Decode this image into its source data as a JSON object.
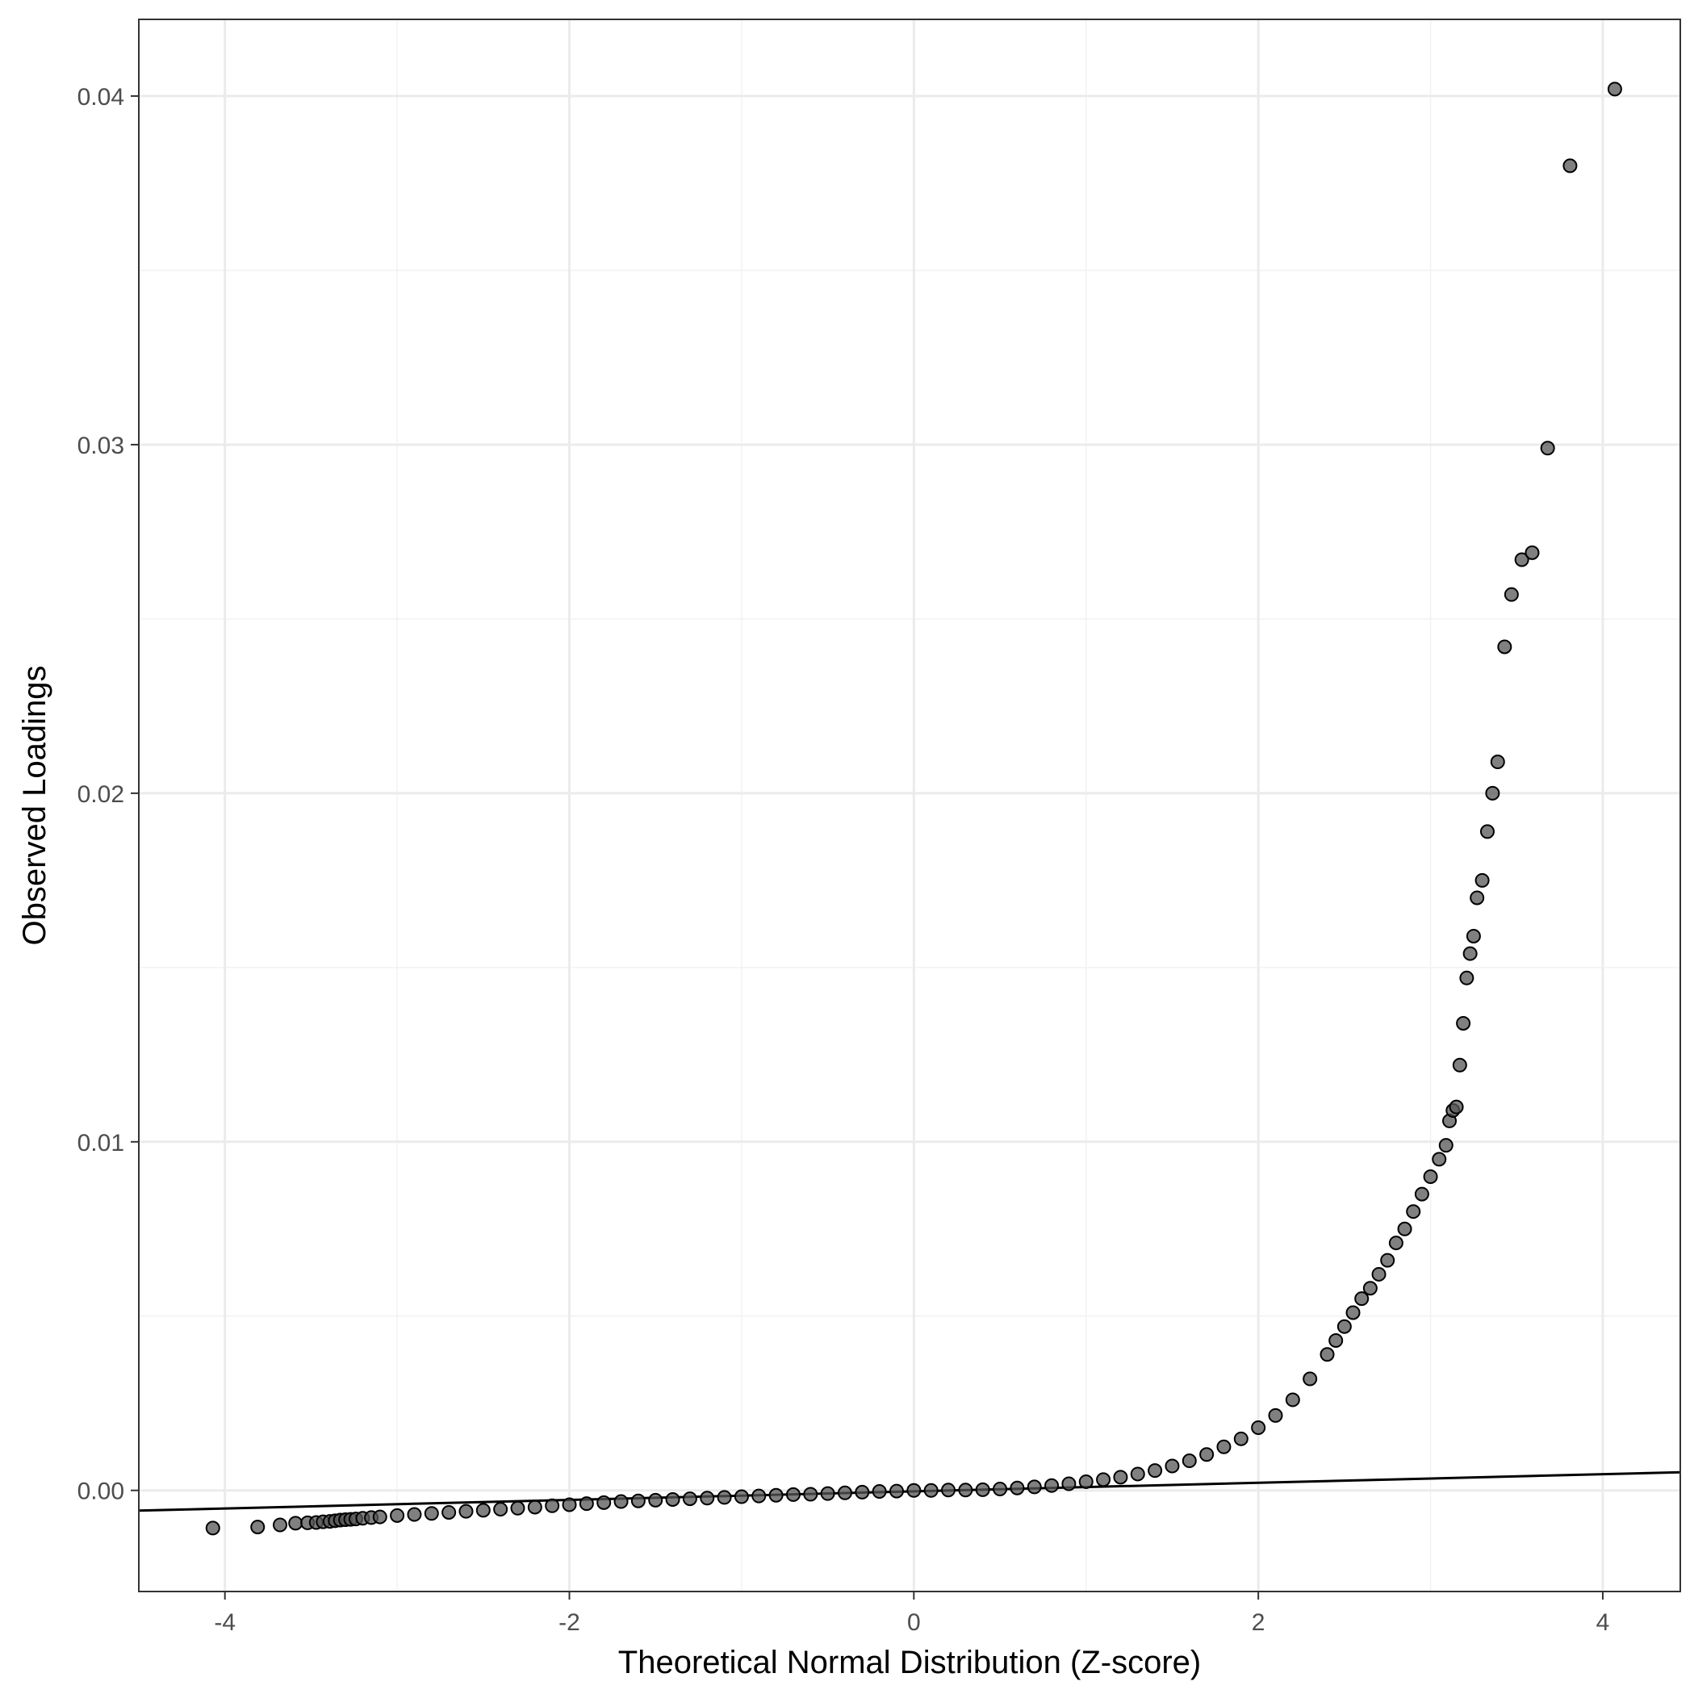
{
  "chart_data": {
    "type": "scatter",
    "title": "",
    "xlabel": "Theoretical Normal Distribution (Z-score)",
    "ylabel": "Observed Loadings",
    "xlim": [
      -4.5,
      4.45
    ],
    "ylim": [
      -0.0029,
      0.0422
    ],
    "x_ticks": [
      -4,
      -2,
      0,
      2,
      4
    ],
    "x_tick_labels": [
      "-4",
      "-2",
      "0",
      "2",
      "4"
    ],
    "y_ticks": [
      0.0,
      0.01,
      0.02,
      0.03,
      0.04
    ],
    "y_tick_labels": [
      "0.00",
      "0.01",
      "0.02",
      "0.03",
      "0.04"
    ],
    "grid": true,
    "legend": "none",
    "point_color": "#555555",
    "point_opacity": 0.75,
    "line_color": "#000000",
    "reference_line": {
      "x": [
        -4.5,
        4.45
      ],
      "y": [
        -0.00058,
        0.00052
      ]
    },
    "series": [
      {
        "points": [
          [
            -4.07,
            -0.00108
          ],
          [
            -3.81,
            -0.00105
          ],
          [
            -3.68,
            -0.00099
          ],
          [
            -3.59,
            -0.00094
          ],
          [
            -3.52,
            -0.00093
          ],
          [
            -3.47,
            -0.00092
          ],
          [
            -3.43,
            -0.0009
          ],
          [
            -3.39,
            -0.00089
          ],
          [
            -3.36,
            -0.00087
          ],
          [
            -3.33,
            -0.00085
          ],
          [
            -3.3,
            -0.00084
          ],
          [
            -3.27,
            -0.00083
          ],
          [
            -3.24,
            -0.00082
          ],
          [
            -3.2,
            -0.0008
          ],
          [
            -3.15,
            -0.00078
          ],
          [
            -3.1,
            -0.00076
          ],
          [
            -3.0,
            -0.00072
          ],
          [
            -2.9,
            -0.00069
          ],
          [
            -2.8,
            -0.00066
          ],
          [
            -2.7,
            -0.00063
          ],
          [
            -2.6,
            -0.0006
          ],
          [
            -2.5,
            -0.00057
          ],
          [
            -2.4,
            -0.00054
          ],
          [
            -2.3,
            -0.00051
          ],
          [
            -2.2,
            -0.00048
          ],
          [
            -2.1,
            -0.00044
          ],
          [
            -2.0,
            -0.00041
          ],
          [
            -1.9,
            -0.00038
          ],
          [
            -1.8,
            -0.00035
          ],
          [
            -1.7,
            -0.00032
          ],
          [
            -1.6,
            -0.0003
          ],
          [
            -1.5,
            -0.00028
          ],
          [
            -1.4,
            -0.00026
          ],
          [
            -1.3,
            -0.00024
          ],
          [
            -1.2,
            -0.00022
          ],
          [
            -1.1,
            -0.0002
          ],
          [
            -1.0,
            -0.00018
          ],
          [
            -0.9,
            -0.00016
          ],
          [
            -0.8,
            -0.00014
          ],
          [
            -0.7,
            -0.00012
          ],
          [
            -0.6,
            -0.00011
          ],
          [
            -0.5,
            -9e-05
          ],
          [
            -0.4,
            -7e-05
          ],
          [
            -0.3,
            -5e-05
          ],
          [
            -0.2,
            -3e-05
          ],
          [
            -0.1,
            -2e-05
          ],
          [
            0.0,
            0.0
          ],
          [
            0.1,
            0.0
          ],
          [
            0.2,
            1e-05
          ],
          [
            0.3,
            1e-05
          ],
          [
            0.4,
            2e-05
          ],
          [
            0.5,
            4e-05
          ],
          [
            0.6,
            7e-05
          ],
          [
            0.7,
            0.0001
          ],
          [
            0.8,
            0.00014
          ],
          [
            0.9,
            0.00019
          ],
          [
            1.0,
            0.00025
          ],
          [
            1.1,
            0.00031
          ],
          [
            1.2,
            0.00038
          ],
          [
            1.3,
            0.00047
          ],
          [
            1.4,
            0.00057
          ],
          [
            1.5,
            0.0007
          ],
          [
            1.6,
            0.00085
          ],
          [
            1.7,
            0.00103
          ],
          [
            1.8,
            0.00125
          ],
          [
            1.9,
            0.00148
          ],
          [
            2.0,
            0.0018
          ],
          [
            2.1,
            0.00215
          ],
          [
            2.2,
            0.0026
          ],
          [
            2.3,
            0.0032
          ],
          [
            2.4,
            0.0039
          ],
          [
            2.45,
            0.0043
          ],
          [
            2.5,
            0.0047
          ],
          [
            2.55,
            0.0051
          ],
          [
            2.6,
            0.0055
          ],
          [
            2.65,
            0.0058
          ],
          [
            2.7,
            0.0062
          ],
          [
            2.75,
            0.0066
          ],
          [
            2.8,
            0.0071
          ],
          [
            2.85,
            0.0075
          ],
          [
            2.9,
            0.008
          ],
          [
            2.95,
            0.0085
          ],
          [
            3.0,
            0.009
          ],
          [
            3.05,
            0.0095
          ],
          [
            3.09,
            0.0099
          ],
          [
            3.11,
            0.0106
          ],
          [
            3.13,
            0.0109
          ],
          [
            3.15,
            0.011
          ],
          [
            3.17,
            0.0122
          ],
          [
            3.19,
            0.0134
          ],
          [
            3.21,
            0.0147
          ],
          [
            3.23,
            0.0154
          ],
          [
            3.25,
            0.0159
          ],
          [
            3.27,
            0.017
          ],
          [
            3.3,
            0.0175
          ],
          [
            3.33,
            0.0189
          ],
          [
            3.36,
            0.02
          ],
          [
            3.39,
            0.0209
          ],
          [
            3.43,
            0.0242
          ],
          [
            3.47,
            0.0257
          ],
          [
            3.53,
            0.0267
          ],
          [
            3.59,
            0.0269
          ],
          [
            3.68,
            0.0299
          ],
          [
            3.81,
            0.038
          ],
          [
            4.07,
            0.0402
          ]
        ]
      }
    ]
  }
}
